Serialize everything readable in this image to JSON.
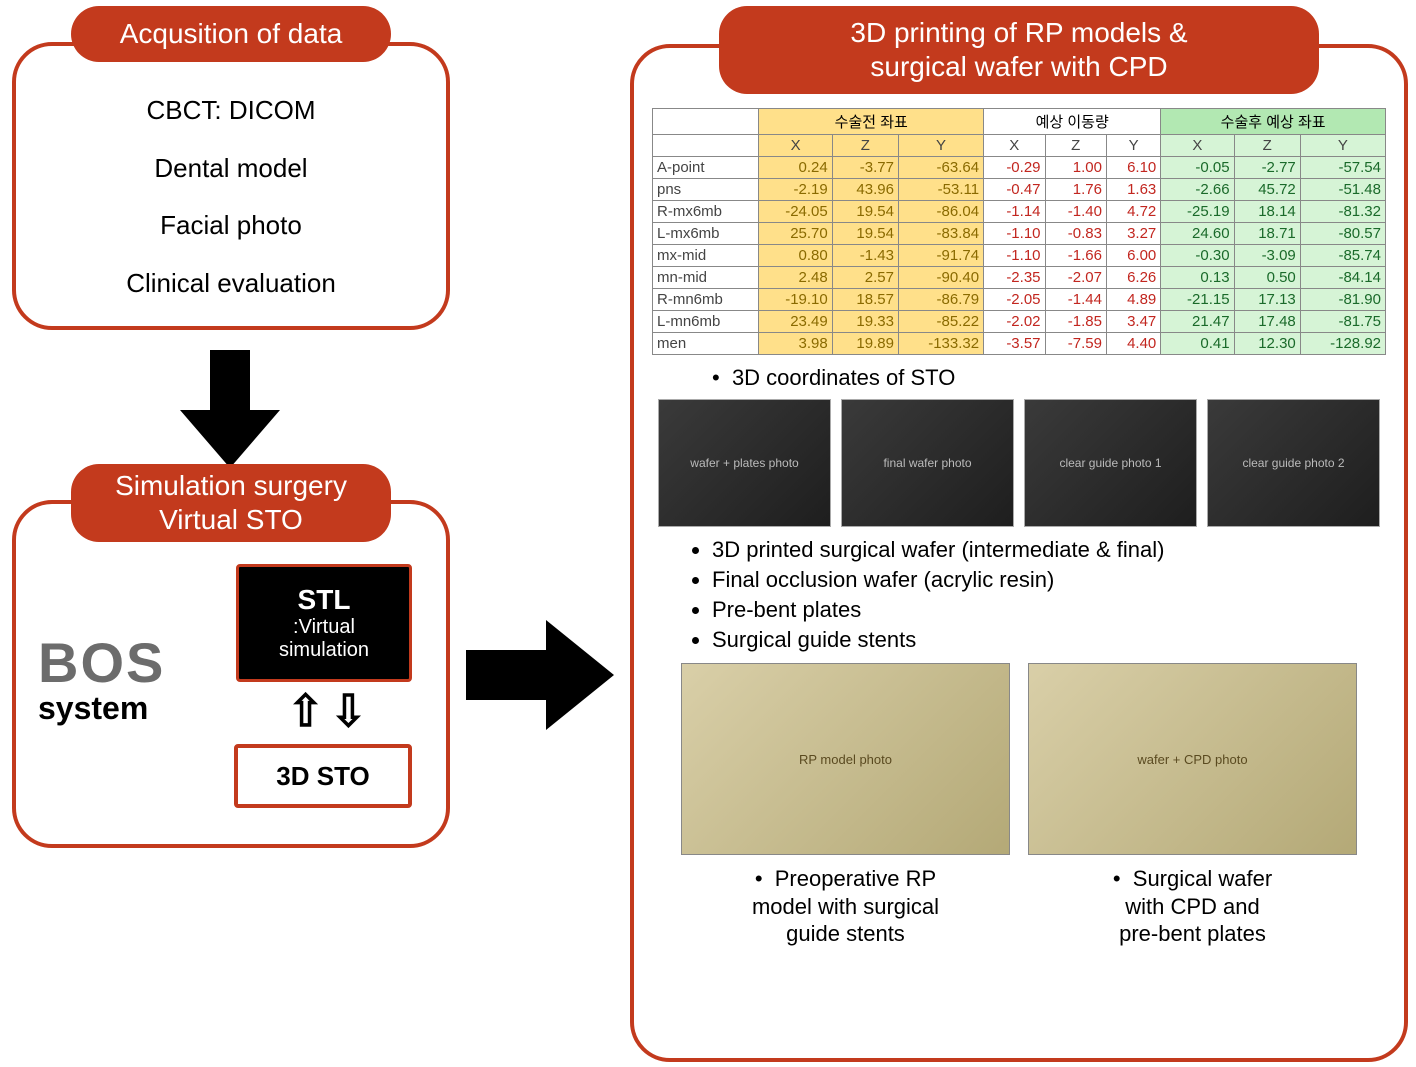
{
  "colors": {
    "accent": "#c33a1d",
    "black": "#000000",
    "white": "#ffffff",
    "gray_text": "#6c6c6c",
    "table_yellow": "#ffe08a",
    "table_green": "#d6f4d6",
    "table_green_header": "#b2e8b2",
    "table_yellow_text": "#8a6a00",
    "table_red_text": "#c2261f",
    "table_green_text": "#1a6a2a"
  },
  "box1": {
    "title": "Acqusition of data",
    "items": [
      "CBCT: DICOM",
      "Dental model",
      "Facial photo",
      "Clinical evaluation"
    ]
  },
  "box2": {
    "title": "Simulation surgery\nVirtual STO",
    "bos": "BOS",
    "bos_sub": "system",
    "stl_t1": "STL",
    "stl_t2": ":Virtual",
    "stl_t3": "simulation",
    "sto": "3D STO"
  },
  "box3": {
    "title": "3D printing of RP models &\nsurgical wafer with CPD",
    "table": {
      "group_headers": [
        "수술전 좌표",
        "예상 이동량",
        "수술후 예상 좌표"
      ],
      "sub_headers": [
        "X",
        "Z",
        "Y",
        "X",
        "Z",
        "Y",
        "X",
        "Z",
        "Y"
      ],
      "rows": [
        {
          "label": "A-point",
          "yellow": [
            0.24,
            -3.77,
            -63.64
          ],
          "white": [
            -0.29,
            1.0,
            6.1
          ],
          "green": [
            -0.05,
            -2.77,
            -57.54
          ]
        },
        {
          "label": "pns",
          "yellow": [
            -2.19,
            43.96,
            -53.11
          ],
          "white": [
            -0.47,
            1.76,
            1.63
          ],
          "green": [
            -2.66,
            45.72,
            -51.48
          ]
        },
        {
          "label": "R-mx6mb",
          "yellow": [
            -24.05,
            19.54,
            -86.04
          ],
          "white": [
            -1.14,
            -1.4,
            4.72
          ],
          "green": [
            -25.19,
            18.14,
            -81.32
          ]
        },
        {
          "label": "L-mx6mb",
          "yellow": [
            25.7,
            19.54,
            -83.84
          ],
          "white": [
            -1.1,
            -0.83,
            3.27
          ],
          "green": [
            24.6,
            18.71,
            -80.57
          ]
        },
        {
          "label": "mx-mid",
          "yellow": [
            0.8,
            -1.43,
            -91.74
          ],
          "white": [
            -1.1,
            -1.66,
            6.0
          ],
          "green": [
            -0.3,
            -3.09,
            -85.74
          ]
        },
        {
          "label": "mn-mid",
          "yellow": [
            2.48,
            2.57,
            -90.4
          ],
          "white": [
            -2.35,
            -2.07,
            6.26
          ],
          "green": [
            0.13,
            0.5,
            -84.14
          ]
        },
        {
          "label": "R-mn6mb",
          "yellow": [
            -19.1,
            18.57,
            -86.79
          ],
          "white": [
            -2.05,
            -1.44,
            4.89
          ],
          "green": [
            -21.15,
            17.13,
            -81.9
          ]
        },
        {
          "label": "L-mn6mb",
          "yellow": [
            23.49,
            19.33,
            -85.22
          ],
          "white": [
            -2.02,
            -1.85,
            3.47
          ],
          "green": [
            21.47,
            17.48,
            -81.75
          ]
        },
        {
          "label": "men",
          "yellow": [
            3.98,
            19.89,
            -133.32
          ],
          "white": [
            -3.57,
            -7.59,
            4.4
          ],
          "green": [
            0.41,
            12.3,
            -128.92
          ]
        }
      ]
    },
    "caption_table": "3D coordinates of STO",
    "mid_images": [
      "wafer + plates photo",
      "final wafer photo",
      "clear guide photo 1",
      "clear guide photo 2"
    ],
    "bullets": [
      "3D printed surgical wafer (intermediate & final)",
      "Final occlusion wafer (acrylic resin)",
      "Pre-bent plates",
      "Surgical guide stents"
    ],
    "bottom": [
      {
        "img": "RP model photo",
        "cap": "Preoperative RP\nmodel with surgical\nguide stents"
      },
      {
        "img": "wafer + CPD photo",
        "cap": "Surgical wafer\nwith CPD and\npre-bent plates"
      }
    ]
  }
}
